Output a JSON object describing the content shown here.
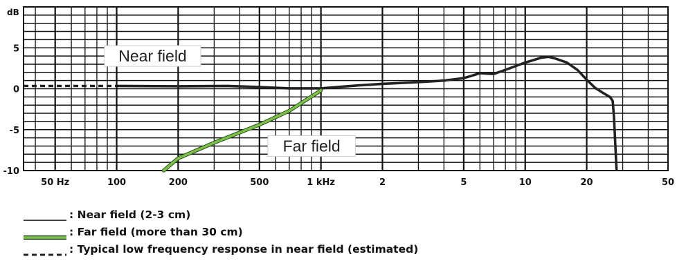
{
  "chart_data": {
    "type": "line",
    "x_scale": "log",
    "xlim": [
      35,
      50000
    ],
    "ylim": [
      -10,
      10
    ],
    "ylabel": "dB",
    "grid": true,
    "x_ticks": [
      {
        "value": 50,
        "label": "50 Hz"
      },
      {
        "value": 100,
        "label": "100"
      },
      {
        "value": 200,
        "label": "200"
      },
      {
        "value": 500,
        "label": "500"
      },
      {
        "value": 1000,
        "label": "1 kHz"
      },
      {
        "value": 2000,
        "label": "2"
      },
      {
        "value": 5000,
        "label": "5"
      },
      {
        "value": 10000,
        "label": "10"
      },
      {
        "value": 20000,
        "label": "20"
      },
      {
        "value": 50000,
        "label": "50"
      }
    ],
    "y_ticks": [
      {
        "value": 5,
        "label": "5"
      },
      {
        "value": 0,
        "label": "0"
      },
      {
        "value": -5,
        "label": "-5"
      },
      {
        "value": -10,
        "label": "-10"
      }
    ],
    "series": [
      {
        "name": "Near field (2-3 cm)",
        "color": "#222222",
        "style": "solid",
        "points": [
          [
            100,
            0.35
          ],
          [
            200,
            0.3
          ],
          [
            350,
            0.35
          ],
          [
            500,
            0.2
          ],
          [
            700,
            0.05
          ],
          [
            1000,
            0.05
          ],
          [
            1500,
            0.4
          ],
          [
            2000,
            0.6
          ],
          [
            3000,
            0.8
          ],
          [
            4000,
            1.0
          ],
          [
            5000,
            1.3
          ],
          [
            5500,
            1.6
          ],
          [
            6000,
            1.9
          ],
          [
            7000,
            1.8
          ],
          [
            8000,
            2.3
          ],
          [
            10000,
            3.2
          ],
          [
            12000,
            3.8
          ],
          [
            13000,
            3.9
          ],
          [
            14000,
            3.7
          ],
          [
            16000,
            3.2
          ],
          [
            18000,
            2.3
          ],
          [
            20000,
            1.1
          ],
          [
            22000,
            0.1
          ],
          [
            24000,
            -0.5
          ],
          [
            26000,
            -1.0
          ],
          [
            26800,
            -1.5
          ],
          [
            27200,
            -3.5
          ],
          [
            28000,
            -10
          ]
        ]
      },
      {
        "name": "Far field (more than 30 cm)",
        "color": "#7cc24a",
        "style": "solid",
        "points": [
          [
            170,
            -10
          ],
          [
            200,
            -8.5
          ],
          [
            300,
            -6.6
          ],
          [
            500,
            -4.4
          ],
          [
            700,
            -2.7
          ],
          [
            1000,
            -0.2
          ]
        ]
      },
      {
        "name": "Typical low frequency response in near field (estimated)",
        "color": "#222222",
        "style": "dashed",
        "points": [
          [
            35,
            0.35
          ],
          [
            100,
            0.35
          ]
        ]
      }
    ],
    "annotations": [
      {
        "text": "Near field",
        "x": 150,
        "y": 4.0
      },
      {
        "text": "Far field",
        "x": 900,
        "y": -7.0
      }
    ]
  },
  "legend": [
    {
      "swatch": "line",
      "color": "#444444",
      "text": ": Near field (2-3 cm)"
    },
    {
      "swatch": "green",
      "color": "#7cc24a",
      "text": ": Far field (more than 30 cm)"
    },
    {
      "swatch": "dashed",
      "color": "#222222",
      "text": ": Typical low frequency response in near field (estimated)"
    }
  ]
}
